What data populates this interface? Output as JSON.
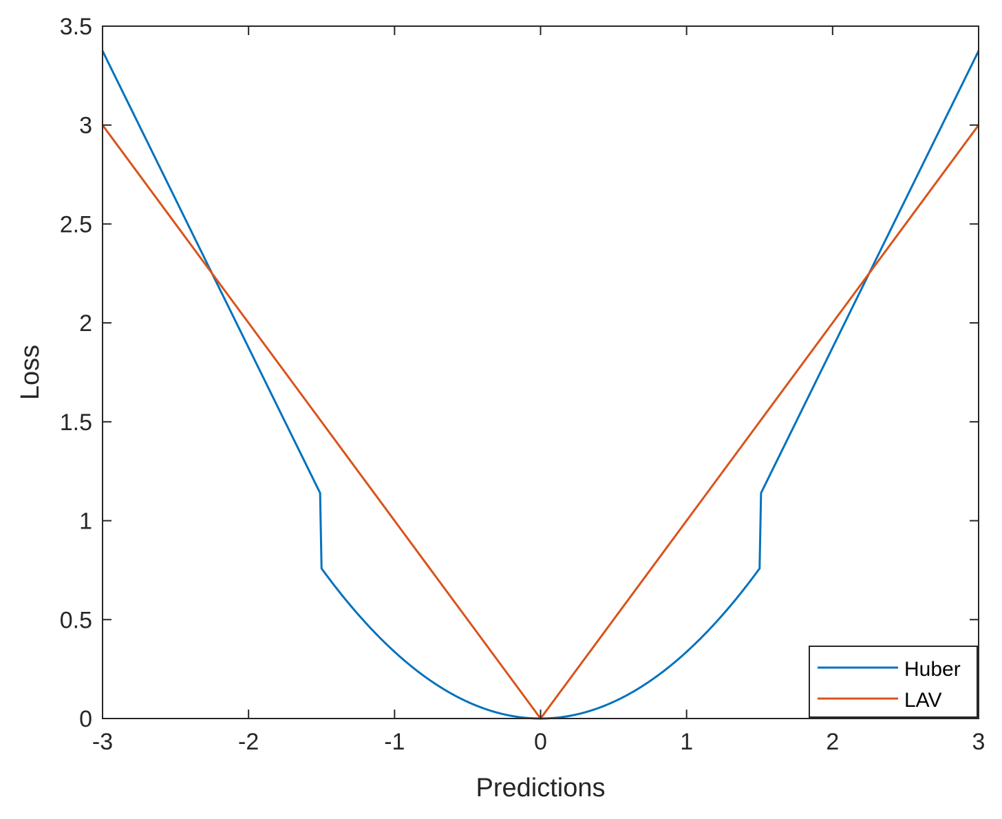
{
  "chart_data": {
    "type": "line",
    "title": "",
    "xlabel": "Predictions",
    "ylabel": "Loss",
    "xlim": [
      -3,
      3
    ],
    "ylim": [
      0,
      3.5
    ],
    "x_ticks": [
      -3,
      -2,
      -1,
      0,
      1,
      2,
      3
    ],
    "x_tick_labels": [
      "-3",
      "-2",
      "-1",
      "0",
      "1",
      "2",
      "3"
    ],
    "y_ticks": [
      0,
      0.5,
      1,
      1.5,
      2,
      2.5,
      3,
      3.5
    ],
    "y_tick_labels": [
      "0",
      "0.5",
      "1",
      "1.5",
      "2",
      "2.5",
      "3",
      "3.5"
    ],
    "grid": false,
    "legend_position": "bottom-right",
    "x": [
      -3,
      -2.75,
      -2.5,
      -2.25,
      -2,
      -1.75,
      -1.5,
      -1.25,
      -1,
      -0.75,
      -0.5,
      -0.25,
      0,
      0.25,
      0.5,
      0.75,
      1,
      1.25,
      1.5,
      1.75,
      2,
      2.25,
      2.5,
      2.75,
      3
    ],
    "series": [
      {
        "name": "Huber",
        "color": "#0072BD",
        "values": [
          3.375,
          2.953,
          2.531,
          2.109,
          1.688,
          1.266,
          0.857,
          0.566,
          0.337,
          0.168,
          0.06,
          0.008,
          0,
          0.008,
          0.06,
          0.168,
          0.337,
          0.566,
          0.857,
          1.266,
          1.688,
          2.109,
          2.531,
          2.953,
          3.375
        ]
      },
      {
        "name": "LAV",
        "color": "#D95319",
        "values": [
          3,
          2.75,
          2.5,
          2.25,
          2,
          1.75,
          1.5,
          1.25,
          1,
          0.75,
          0.5,
          0.25,
          0,
          0.25,
          0.5,
          0.75,
          1,
          1.25,
          1.5,
          1.75,
          2,
          2.25,
          2.5,
          2.75,
          3
        ]
      }
    ]
  }
}
